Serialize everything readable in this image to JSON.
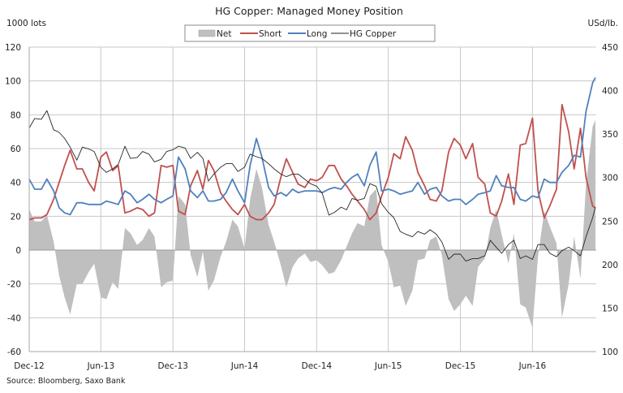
{
  "chart_data": {
    "type": "line",
    "title": "HG Copper: Managed Money Position",
    "ylabel_left": "1000 lots",
    "ylabel_right": "USd/lb.",
    "source": "Source: Bloomberg, Saxo Bank",
    "ylim_left": [
      -60,
      120
    ],
    "yticks_left": [
      120,
      100,
      80,
      60,
      40,
      20,
      0,
      -20,
      -40,
      -60
    ],
    "ylim_right": [
      100,
      450
    ],
    "yticks_right": [
      450,
      400,
      350,
      300,
      250,
      200,
      150,
      100
    ],
    "xlim": [
      "2012-12-01",
      "2016-11-10"
    ],
    "xticks": [
      {
        "date": "2012-12-01",
        "label": "Dec-12"
      },
      {
        "date": "2013-06-01",
        "label": "Jun-13"
      },
      {
        "date": "2013-12-01",
        "label": "Dec-13"
      },
      {
        "date": "2014-06-01",
        "label": "Jun-14"
      },
      {
        "date": "2014-12-01",
        "label": "Dec-14"
      },
      {
        "date": "2015-06-01",
        "label": "Jun-15"
      },
      {
        "date": "2015-12-01",
        "label": "Dec-15"
      },
      {
        "date": "2016-06-01",
        "label": "Jun-16"
      }
    ],
    "grid": true,
    "legend_placement": "top-center",
    "x": [
      "2012-12-01",
      "2012-12-15",
      "2013-01-01",
      "2013-01-15",
      "2013-02-01",
      "2013-02-15",
      "2013-03-01",
      "2013-03-15",
      "2013-04-01",
      "2013-04-15",
      "2013-05-01",
      "2013-05-15",
      "2013-06-01",
      "2013-06-15",
      "2013-07-01",
      "2013-07-15",
      "2013-08-01",
      "2013-08-15",
      "2013-09-01",
      "2013-09-15",
      "2013-10-01",
      "2013-10-15",
      "2013-11-01",
      "2013-11-15",
      "2013-12-01",
      "2013-12-15",
      "2014-01-01",
      "2014-01-15",
      "2014-02-01",
      "2014-02-15",
      "2014-03-01",
      "2014-03-15",
      "2014-04-01",
      "2014-04-15",
      "2014-05-01",
      "2014-05-15",
      "2014-06-01",
      "2014-06-15",
      "2014-07-01",
      "2014-07-15",
      "2014-08-01",
      "2014-08-15",
      "2014-09-01",
      "2014-09-15",
      "2014-10-01",
      "2014-10-15",
      "2014-11-01",
      "2014-11-15",
      "2014-12-01",
      "2014-12-15",
      "2015-01-01",
      "2015-01-15",
      "2015-02-01",
      "2015-02-15",
      "2015-03-01",
      "2015-03-15",
      "2015-04-01",
      "2015-04-15",
      "2015-05-01",
      "2015-05-15",
      "2015-06-01",
      "2015-06-15",
      "2015-07-01",
      "2015-07-15",
      "2015-08-01",
      "2015-08-15",
      "2015-09-01",
      "2015-09-15",
      "2015-10-01",
      "2015-10-15",
      "2015-11-01",
      "2015-11-15",
      "2015-12-01",
      "2015-12-15",
      "2016-01-01",
      "2016-01-15",
      "2016-02-01",
      "2016-02-15",
      "2016-03-01",
      "2016-03-15",
      "2016-04-01",
      "2016-04-15",
      "2016-05-01",
      "2016-05-15",
      "2016-06-01",
      "2016-06-15",
      "2016-07-01",
      "2016-07-15",
      "2016-08-01",
      "2016-08-15",
      "2016-09-01",
      "2016-09-15",
      "2016-10-01",
      "2016-10-15",
      "2016-11-01",
      "2016-11-08"
    ],
    "series": [
      {
        "name": "Net",
        "kind": "area",
        "axis": "left",
        "color": "#bfbfbf",
        "values": [
          24,
          17,
          17,
          21,
          5,
          -15,
          -28,
          -38,
          -20,
          -20,
          -13,
          -8,
          -28,
          -29,
          -19,
          -23,
          13,
          10,
          3,
          6,
          13,
          8,
          -22,
          -19,
          -18,
          32,
          27,
          -3,
          -16,
          -1,
          -24,
          -18,
          -4,
          5,
          18,
          14,
          1,
          30,
          48,
          37,
          15,
          5,
          -9,
          -22,
          -10,
          -5,
          -2,
          -7,
          -6,
          -9,
          -14,
          -13,
          -6,
          2,
          10,
          16,
          14,
          32,
          36,
          3,
          -7,
          -22,
          -21,
          -33,
          -24,
          -6,
          -5,
          6,
          8,
          -3,
          -29,
          -36,
          -32,
          -27,
          -33,
          -10,
          -5,
          13,
          24,
          9,
          -8,
          10,
          -32,
          -34,
          -46,
          -4,
          23,
          14,
          4,
          -40,
          -20,
          8,
          -17,
          39,
          73,
          77
        ]
      },
      {
        "name": "Short",
        "kind": "line",
        "axis": "left",
        "color": "#c0504d",
        "values": [
          18,
          19,
          19,
          21,
          30,
          40,
          50,
          59,
          48,
          48,
          40,
          35,
          55,
          58,
          47,
          50,
          22,
          23,
          25,
          24,
          20,
          22,
          50,
          49,
          50,
          23,
          21,
          38,
          47,
          36,
          53,
          47,
          34,
          29,
          24,
          21,
          27,
          20,
          18,
          18,
          22,
          27,
          43,
          54,
          46,
          39,
          37,
          42,
          41,
          43,
          50,
          50,
          42,
          38,
          33,
          29,
          24,
          18,
          22,
          32,
          43,
          57,
          54,
          67,
          59,
          46,
          38,
          30,
          29,
          35,
          58,
          66,
          62,
          54,
          63,
          43,
          39,
          22,
          20,
          29,
          45,
          27,
          62,
          63,
          78,
          35,
          19,
          26,
          36,
          86,
          70,
          48,
          72,
          43,
          26,
          25
        ]
      },
      {
        "name": "Long",
        "kind": "line",
        "axis": "left",
        "color": "#4f81bd",
        "values": [
          42,
          36,
          36,
          42,
          35,
          25,
          22,
          21,
          28,
          28,
          27,
          27,
          27,
          29,
          28,
          27,
          35,
          33,
          28,
          30,
          33,
          30,
          28,
          30,
          32,
          55,
          48,
          35,
          31,
          35,
          29,
          29,
          30,
          34,
          42,
          35,
          28,
          50,
          66,
          55,
          37,
          32,
          34,
          32,
          36,
          34,
          35,
          35,
          35,
          34,
          36,
          37,
          36,
          40,
          43,
          45,
          38,
          50,
          58,
          35,
          36,
          35,
          33,
          34,
          35,
          40,
          33,
          36,
          37,
          32,
          29,
          30,
          30,
          27,
          30,
          33,
          34,
          35,
          44,
          38,
          37,
          37,
          30,
          29,
          32,
          31,
          42,
          40,
          40,
          46,
          50,
          56,
          55,
          82,
          99,
          102
        ]
      },
      {
        "name": "HG Copper",
        "kind": "line",
        "axis": "right",
        "color": "#262626",
        "values": [
          357,
          368,
          367,
          377,
          355,
          352,
          345,
          335,
          320,
          335,
          333,
          330,
          312,
          306,
          310,
          315,
          336,
          322,
          323,
          330,
          327,
          318,
          321,
          330,
          332,
          336,
          334,
          322,
          329,
          322,
          296,
          304,
          312,
          316,
          316,
          307,
          312,
          327,
          324,
          322,
          316,
          310,
          304,
          301,
          304,
          304,
          298,
          293,
          290,
          282,
          257,
          260,
          266,
          263,
          276,
          274,
          276,
          293,
          290,
          270,
          260,
          254,
          238,
          235,
          232,
          238,
          235,
          240,
          235,
          226,
          206,
          212,
          212,
          204,
          207,
          207,
          210,
          228,
          220,
          213,
          223,
          228,
          207,
          210,
          206,
          223,
          223,
          213,
          209,
          216,
          220,
          216,
          210,
          232,
          254,
          266
        ]
      }
    ]
  }
}
